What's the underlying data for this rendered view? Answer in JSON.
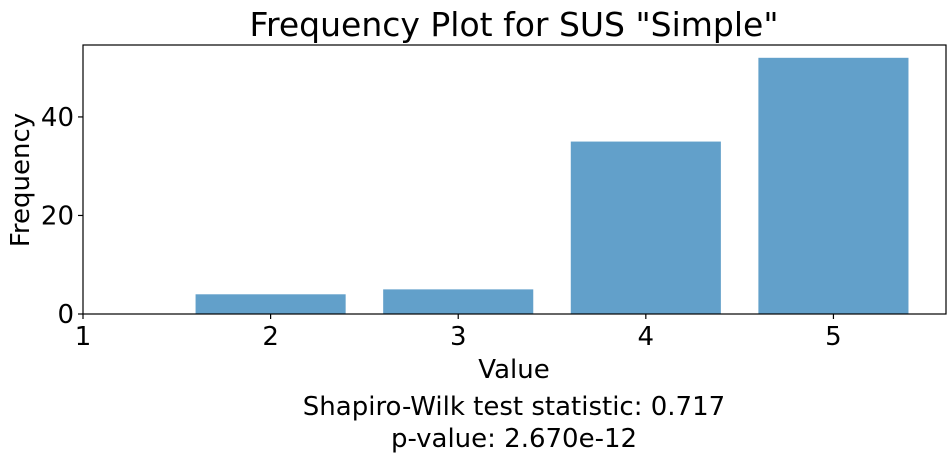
{
  "chart_data": {
    "type": "bar",
    "title": "Frequency Plot for SUS \"Simple\"",
    "xlabel": "Value",
    "ylabel": "Frequency",
    "categories": [
      2,
      3,
      4,
      5
    ],
    "values": [
      4,
      5,
      35,
      52
    ],
    "xlim": [
      1,
      5.6
    ],
    "ylim": [
      0,
      54.6
    ],
    "xticks": [
      1,
      2,
      3,
      4,
      5
    ],
    "yticks": [
      0,
      20,
      40
    ],
    "bar_color": "#62a0ca",
    "grid": false,
    "annotation": {
      "line1": "Shapiro-Wilk test statistic: 0.717",
      "line2": "p-value: 2.670e-12"
    }
  }
}
